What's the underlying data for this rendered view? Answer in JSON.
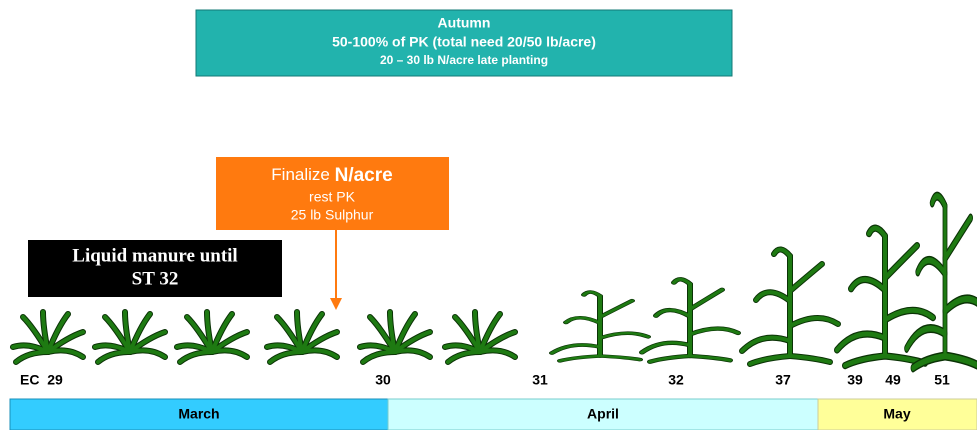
{
  "autumn": {
    "title": "Autumn",
    "line1": "50-100% of PK (total need 20/50 lb/acre)",
    "line2": "20 – 30 lb N/acre late planting"
  },
  "finalize": {
    "prefix": "Finalize",
    "emphasis": "N/acre",
    "line1": "rest PK",
    "line2": "25 lb Sulphur"
  },
  "manure": {
    "line1": "Liquid manure until",
    "line2": "ST 32"
  },
  "stages": [
    "EC  29",
    "30",
    "31",
    "32",
    "37",
    "39",
    "49",
    "51"
  ],
  "months": [
    "March",
    "April",
    "May"
  ]
}
